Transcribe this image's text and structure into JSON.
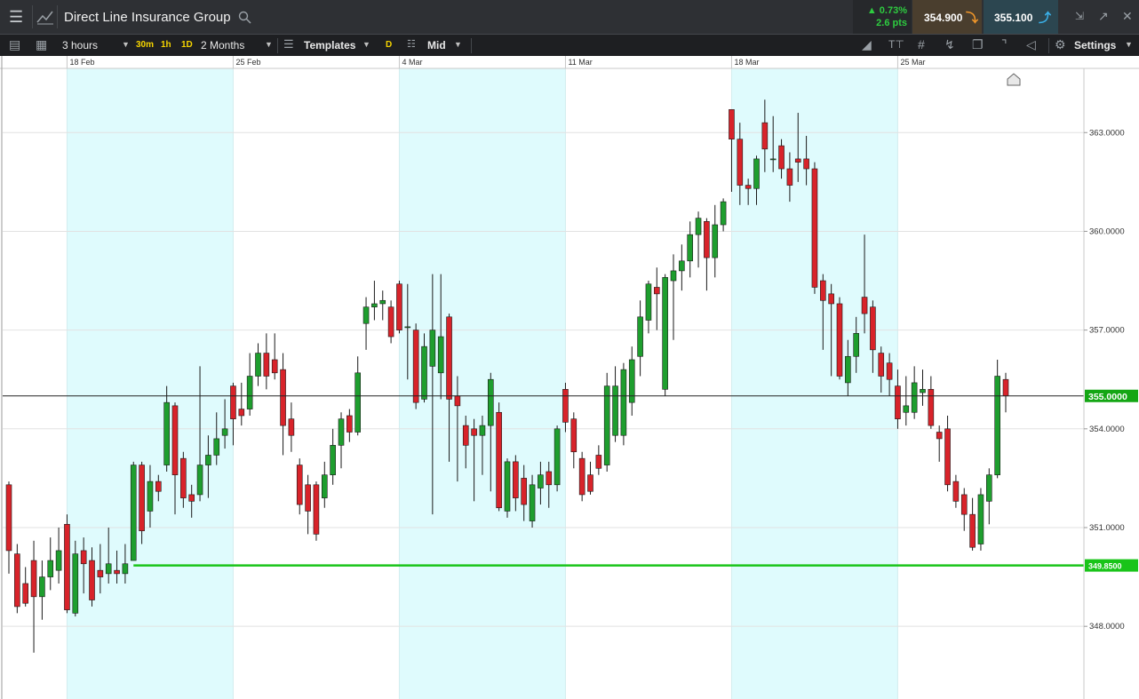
{
  "toolbar": {
    "instrument": "Direct Line Insurance Group",
    "change_pct": "▲ 0.73%",
    "change_pts": "2.6 pts",
    "sell": "354.900",
    "buy": "355.100",
    "interval": "3 hours",
    "quick_intervals": [
      "30m",
      "1h",
      "1D"
    ],
    "range": "2 Months",
    "templates": "Templates",
    "d": "D",
    "price_type": "Mid",
    "settings": "Settings"
  },
  "chart_data": {
    "type": "candlestick",
    "categories": [
      null,
      null,
      null,
      null,
      null,
      null,
      null,
      "18 Feb",
      null,
      null,
      null,
      null,
      null,
      null,
      null,
      null,
      null,
      null,
      null,
      null,
      null,
      null,
      null,
      null,
      null,
      null,
      null,
      "25 Feb",
      null,
      null,
      null,
      null,
      null,
      null,
      null,
      null,
      null,
      null,
      null,
      null,
      null,
      null,
      null,
      null,
      null,
      null,
      null,
      "4 Mar",
      null,
      null,
      null,
      null,
      null,
      null,
      null,
      null,
      null,
      null,
      null,
      null,
      null,
      null,
      null,
      null,
      null,
      null,
      null,
      "11 Mar",
      null,
      null,
      null,
      null,
      null,
      null,
      null,
      null,
      null,
      null,
      null,
      null,
      null,
      null,
      null,
      null,
      null,
      null,
      null,
      "18 Mar",
      null,
      null,
      null,
      null,
      null,
      null,
      null,
      null,
      null,
      null,
      null,
      null,
      null,
      null,
      null,
      null,
      null,
      null,
      null,
      "25 Mar",
      null,
      null,
      null,
      null,
      null,
      null,
      null,
      null,
      null,
      null,
      null,
      null,
      null
    ],
    "open": [
      352.3,
      350.2,
      349.3,
      350.0,
      348.9,
      349.5,
      349.7,
      351.1,
      348.4,
      350.3,
      350.0,
      349.7,
      349.6,
      349.7,
      349.6,
      350.0,
      352.9,
      351.5,
      352.4,
      352.9,
      354.7,
      353.1,
      352.0,
      352.0,
      352.9,
      353.2,
      353.8,
      355.3,
      354.6,
      354.6,
      355.6,
      356.3,
      356.1,
      355.8,
      354.3,
      352.9,
      352.3,
      352.3,
      351.9,
      352.6,
      353.5,
      354.4,
      353.9,
      357.2,
      357.7,
      357.8,
      357.7,
      358.4,
      357.1,
      357.0,
      354.9,
      355.9,
      355.7,
      357.4,
      355.0,
      354.1,
      354.0,
      353.8,
      354.1,
      354.5,
      351.5,
      353.0,
      352.5,
      351.2,
      352.2,
      352.7,
      352.3,
      355.2,
      354.3,
      353.1,
      352.6,
      353.2,
      352.9,
      353.8,
      353.8,
      354.8,
      356.2,
      357.3,
      358.3,
      355.2,
      358.5,
      358.8,
      359.1,
      359.9,
      360.3,
      359.2,
      360.2,
      363.7,
      362.8,
      361.4,
      361.3,
      363.3,
      362.2,
      362.6,
      361.9,
      362.2,
      362.2,
      361.9,
      358.5,
      358.1,
      357.8,
      355.4,
      356.2,
      358.0,
      357.7,
      356.3,
      356.0,
      355.3,
      354.5,
      354.5,
      355.1,
      355.2,
      353.9,
      354.0,
      352.4,
      352.0,
      351.4,
      350.5,
      351.8,
      352.6,
      355.5
    ],
    "high": [
      352.4,
      350.5,
      349.8,
      350.6,
      350.0,
      350.7,
      351.0,
      351.4,
      350.6,
      350.7,
      350.4,
      350.5,
      351.0,
      350.3,
      350.5,
      353.0,
      353.0,
      352.9,
      352.6,
      355.3,
      354.8,
      353.3,
      352.3,
      355.9,
      353.8,
      354.5,
      354.9,
      355.4,
      355.4,
      356.3,
      356.6,
      356.9,
      356.9,
      356.3,
      354.8,
      353.1,
      352.6,
      352.4,
      353.0,
      354.0,
      354.5,
      354.6,
      356.2,
      358.0,
      358.5,
      358.2,
      357.9,
      358.5,
      358.4,
      357.2,
      356.9,
      358.7,
      358.7,
      357.5,
      355.6,
      354.4,
      354.3,
      354.4,
      355.7,
      354.8,
      353.1,
      353.2,
      352.9,
      352.6,
      353.0,
      353.0,
      354.1,
      355.4,
      354.5,
      353.3,
      353.0,
      353.5,
      355.7,
      355.9,
      356.0,
      356.5,
      357.9,
      358.5,
      358.9,
      358.7,
      359.3,
      359.6,
      360.3,
      360.6,
      360.4,
      360.8,
      361.0,
      363.7,
      363.3,
      361.6,
      362.3,
      364.0,
      363.5,
      362.8,
      362.4,
      363.6,
      362.9,
      362.1,
      358.7,
      358.4,
      358.0,
      356.7,
      357.4,
      359.9,
      357.9,
      356.5,
      356.3,
      355.8,
      355.6,
      355.9,
      355.8,
      355.6,
      354.1,
      354.4,
      352.6,
      352.2,
      351.9,
      352.2,
      352.8,
      356.1,
      355.7
    ],
    "low": [
      349.6,
      348.4,
      348.6,
      347.2,
      348.2,
      349.1,
      349.3,
      348.4,
      348.3,
      349.0,
      348.6,
      349.0,
      349.3,
      349.3,
      349.3,
      350.0,
      350.5,
      351.0,
      351.8,
      352.7,
      351.4,
      351.6,
      351.3,
      351.8,
      351.9,
      352.9,
      353.4,
      353.5,
      354.1,
      354.4,
      355.3,
      355.2,
      355.5,
      353.2,
      353.3,
      351.4,
      350.8,
      350.6,
      351.6,
      352.3,
      352.8,
      353.6,
      353.8,
      356.4,
      357.3,
      357.3,
      356.6,
      356.9,
      355.5,
      354.6,
      354.8,
      351.4,
      354.9,
      353.0,
      352.4,
      352.8,
      351.8,
      352.6,
      352.1,
      351.5,
      351.3,
      351.5,
      351.2,
      351.0,
      351.7,
      351.6,
      352.1,
      353.9,
      352.8,
      351.8,
      352.0,
      352.6,
      352.7,
      353.6,
      353.5,
      354.4,
      355.6,
      356.9,
      357.0,
      355.0,
      356.7,
      358.2,
      358.6,
      358.9,
      358.2,
      358.6,
      360.0,
      361.2,
      360.8,
      360.8,
      360.8,
      361.8,
      361.8,
      361.6,
      360.9,
      361.5,
      361.4,
      358.1,
      356.4,
      355.6,
      355.5,
      355.0,
      355.7,
      356.9,
      355.7,
      355.1,
      355.0,
      354.0,
      354.1,
      354.3,
      354.7,
      354.0,
      353.0,
      352.1,
      351.6,
      350.9,
      350.3,
      350.3,
      351.1,
      352.5,
      354.5
    ],
    "close": [
      350.3,
      348.6,
      348.7,
      348.9,
      349.5,
      350.0,
      350.3,
      348.5,
      350.2,
      349.9,
      348.8,
      349.5,
      349.9,
      349.6,
      349.9,
      352.9,
      350.9,
      352.4,
      352.1,
      354.8,
      352.6,
      351.9,
      351.8,
      352.9,
      353.2,
      353.7,
      354.0,
      354.3,
      354.4,
      355.6,
      356.3,
      355.6,
      355.7,
      354.1,
      353.8,
      351.7,
      351.5,
      350.8,
      352.6,
      353.5,
      354.3,
      353.9,
      355.7,
      357.7,
      357.8,
      357.9,
      356.8,
      357.0,
      357.1,
      354.8,
      356.5,
      357.0,
      356.8,
      354.9,
      354.7,
      353.5,
      353.8,
      354.1,
      355.5,
      351.6,
      353.0,
      351.9,
      351.7,
      352.3,
      352.6,
      352.3,
      354.0,
      354.2,
      353.3,
      352.0,
      352.1,
      352.8,
      355.3,
      355.3,
      355.8,
      356.1,
      357.4,
      358.4,
      358.1,
      358.6,
      358.8,
      359.1,
      359.9,
      360.4,
      359.2,
      360.2,
      360.9,
      362.8,
      361.4,
      361.3,
      362.2,
      362.5,
      362.2,
      361.9,
      361.4,
      362.1,
      361.9,
      358.3,
      357.9,
      357.8,
      355.6,
      356.2,
      356.9,
      357.5,
      356.4,
      355.6,
      355.5,
      354.3,
      354.7,
      355.4,
      355.2,
      354.1,
      353.7,
      352.3,
      351.8,
      351.4,
      350.4,
      352.0,
      352.6,
      355.6,
      355.0
    ],
    "up_color": "#1e9e2e",
    "down_color": "#d8232a",
    "ylim": [
      345.9,
      364.95
    ],
    "yticks": [
      {
        "value": 348,
        "label": "348.0000"
      },
      {
        "value": 351,
        "label": "351.0000"
      },
      {
        "value": 354,
        "label": "354.0000"
      },
      {
        "value": 357,
        "label": "357.0000"
      },
      {
        "value": 360,
        "label": "360.0000"
      },
      {
        "value": 363,
        "label": "363.0000"
      }
    ],
    "grid": true,
    "lines": [
      {
        "value": 355,
        "label": "355.0000",
        "color": "#222222"
      },
      {
        "value": 349.85,
        "label": "349.8500",
        "color": "#19c419"
      }
    ]
  }
}
